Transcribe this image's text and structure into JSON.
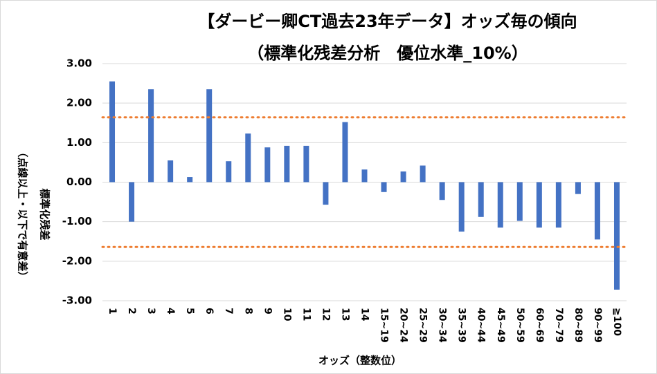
{
  "chart_data": {
    "type": "bar",
    "title": "【ダービー卿CT過去23年データ】オッズ毎の傾向",
    "subtitle": "（標準化残差分析　優位水準_10%）",
    "ylabel": "標準化残差",
    "ylabel_note": "（点線以上・以下で有意差）",
    "xlabel": "オッズ（整数位）",
    "categories": [
      "1",
      "2",
      "3",
      "4",
      "5",
      "6",
      "7",
      "8",
      "9",
      "10",
      "11",
      "12",
      "13",
      "14",
      "15~19",
      "20~24",
      "25~29",
      "30~34",
      "35~39",
      "40~44",
      "45~49",
      "50~59",
      "60~69",
      "70~79",
      "80~89",
      "90~99",
      "≧100"
    ],
    "values": [
      2.55,
      -1.0,
      2.35,
      0.55,
      0.13,
      2.35,
      0.53,
      1.23,
      0.88,
      0.92,
      0.92,
      -0.57,
      1.52,
      0.32,
      -0.25,
      0.27,
      0.42,
      -0.45,
      -1.25,
      -0.88,
      -1.15,
      -0.98,
      -1.15,
      -1.15,
      -0.3,
      -1.45,
      -2.72
    ],
    "color": "#4472c4",
    "ylim": [
      -3,
      3
    ],
    "yticks": [
      {
        "value": -3,
        "label": "-3.00"
      },
      {
        "value": -2,
        "label": "-2.00"
      },
      {
        "value": -1,
        "label": "-1.00"
      },
      {
        "value": 0,
        "label": "0.00"
      },
      {
        "value": 1,
        "label": "1.00"
      },
      {
        "value": 2,
        "label": "2.00"
      },
      {
        "value": 3,
        "label": "3.00"
      }
    ],
    "reference_lines": [
      1.64,
      -1.64
    ],
    "reference_color": "#ed7d31",
    "grid": true
  }
}
